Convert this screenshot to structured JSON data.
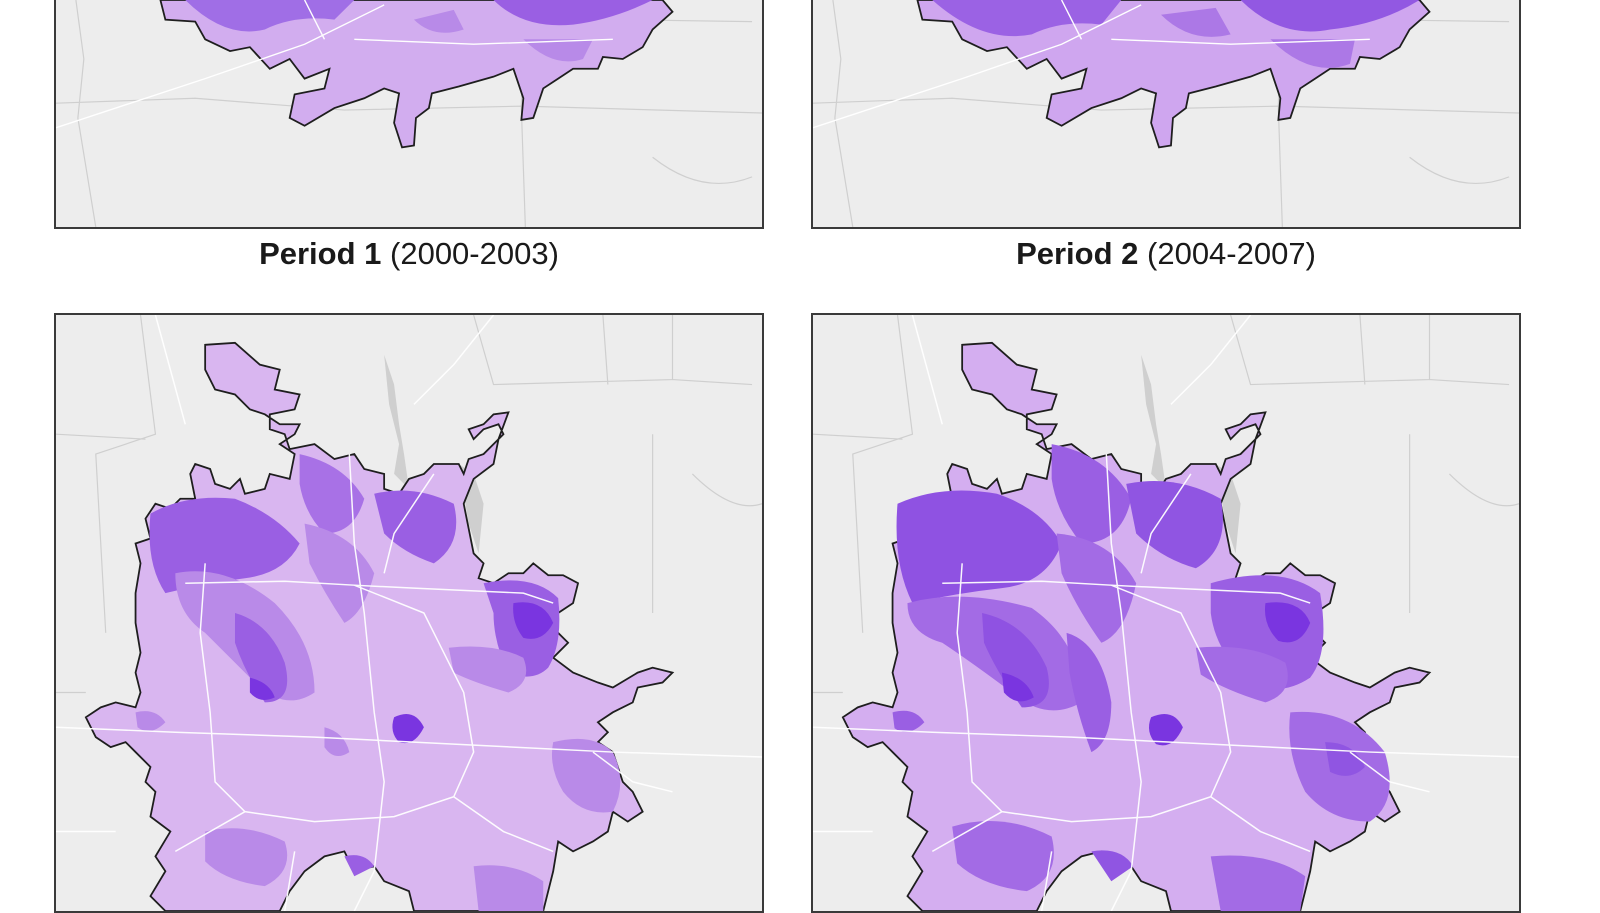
{
  "captions": [
    {
      "period": "Period 1",
      "years": "(2000-2003)"
    },
    {
      "period": "Period 2",
      "years": "(2004-2007)"
    }
  ],
  "colors": {
    "background": "#ededed",
    "boundary": "#1e1e1e",
    "light_class": "#d9b6f0",
    "mid_class": "#b98ae8",
    "dark_class": "#9a5fe3",
    "darkest_class": "#7a35e0",
    "roads": "#ffffff",
    "water": "#cfcfcf"
  }
}
